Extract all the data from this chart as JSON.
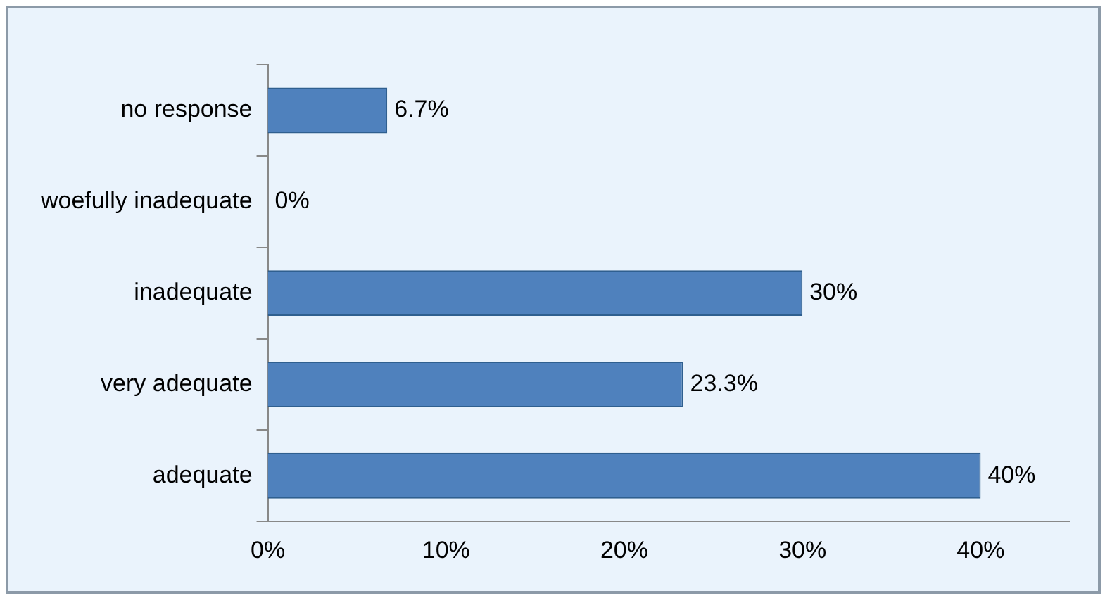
{
  "chart_data": {
    "type": "bar",
    "orientation": "horizontal",
    "categories": [
      "no response",
      "woefully inadequate",
      "inadequate",
      "very adequate",
      "adequate"
    ],
    "values": [
      6.7,
      0,
      30,
      23.3,
      40
    ],
    "color": "#4f81bd",
    "value_labels": [
      "6.7%",
      "0%",
      "30%",
      "23.3%",
      "40%"
    ],
    "xlim": [
      0,
      45
    ],
    "xticks": [
      {
        "value": 0,
        "label": "0%"
      },
      {
        "value": 10,
        "label": "10%"
      },
      {
        "value": 20,
        "label": "20%"
      },
      {
        "value": 30,
        "label": "30%"
      },
      {
        "value": 40,
        "label": "40%"
      }
    ],
    "grid": false,
    "legend": false
  }
}
